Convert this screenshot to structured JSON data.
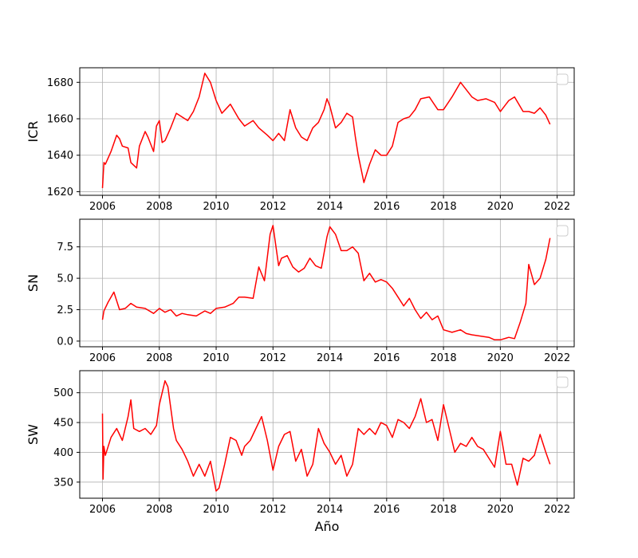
{
  "chart_data": {
    "type": "line",
    "xlabel": "Año",
    "line_color": "#ff0000",
    "grid": true,
    "legend": "top-right (empty)",
    "xlim": [
      2005.2,
      2022.6
    ],
    "x_ticks": [
      2006,
      2008,
      2010,
      2012,
      2014,
      2016,
      2018,
      2020,
      2022
    ],
    "panels": [
      {
        "ylabel": "ICR",
        "ylim": [
          1618,
          1688
        ],
        "y_ticks": [
          1620,
          1640,
          1660,
          1680
        ],
        "y_tick_labels": [
          "1620",
          "1640",
          "1660",
          "1680"
        ],
        "series": {
          "x": [
            2006.0,
            2006.05,
            2006.1,
            2006.3,
            2006.5,
            2006.6,
            2006.7,
            2006.9,
            2007.0,
            2007.2,
            2007.3,
            2007.5,
            2007.6,
            2007.8,
            2007.9,
            2008.0,
            2008.1,
            2008.2,
            2008.4,
            2008.6,
            2008.8,
            2009.0,
            2009.2,
            2009.4,
            2009.6,
            2009.8,
            2010.0,
            2010.2,
            2010.5,
            2010.8,
            2011.0,
            2011.3,
            2011.5,
            2011.8,
            2012.0,
            2012.2,
            2012.4,
            2012.6,
            2012.8,
            2013.0,
            2013.2,
            2013.4,
            2013.6,
            2013.8,
            2013.9,
            2014.0,
            2014.2,
            2014.4,
            2014.6,
            2014.8,
            2014.9,
            2015.0,
            2015.2,
            2015.4,
            2015.6,
            2015.8,
            2016.0,
            2016.2,
            2016.4,
            2016.6,
            2016.8,
            2017.0,
            2017.2,
            2017.5,
            2017.8,
            2018.0,
            2018.3,
            2018.6,
            2018.8,
            2019.0,
            2019.2,
            2019.5,
            2019.8,
            2020.0,
            2020.3,
            2020.5,
            2020.8,
            2021.0,
            2021.2,
            2021.4,
            2021.6,
            2021.75
          ],
          "y": [
            1622,
            1636,
            1635,
            1642,
            1651,
            1649,
            1645,
            1644,
            1636,
            1633,
            1645,
            1653,
            1650,
            1642,
            1656,
            1659,
            1647,
            1648,
            1655,
            1663,
            1661,
            1659,
            1664,
            1672,
            1685,
            1680,
            1670,
            1663,
            1668,
            1660,
            1656,
            1659,
            1655,
            1651,
            1648,
            1652,
            1648,
            1665,
            1655,
            1650,
            1648,
            1655,
            1658,
            1665,
            1671,
            1667,
            1655,
            1658,
            1663,
            1661,
            1650,
            1640,
            1625,
            1635,
            1643,
            1640,
            1640,
            1645,
            1658,
            1660,
            1661,
            1665,
            1671,
            1672,
            1665,
            1665,
            1672,
            1680,
            1676,
            1672,
            1670,
            1671,
            1669,
            1664,
            1670,
            1672,
            1664,
            1664,
            1663,
            1666,
            1662,
            1657
          ]
        }
      },
      {
        "ylabel": "SN",
        "ylim": [
          -0.45,
          9.7
        ],
        "y_ticks": [
          0,
          2.5,
          5.0,
          7.5
        ],
        "y_tick_labels": [
          "0.0",
          "2.5",
          "5.0",
          "7.5"
        ],
        "series": {
          "x": [
            2006.0,
            2006.05,
            2006.2,
            2006.4,
            2006.6,
            2006.8,
            2007.0,
            2007.2,
            2007.5,
            2007.8,
            2008.0,
            2008.2,
            2008.4,
            2008.6,
            2008.8,
            2009.0,
            2009.3,
            2009.6,
            2009.8,
            2010.0,
            2010.3,
            2010.6,
            2010.8,
            2011.0,
            2011.3,
            2011.5,
            2011.7,
            2011.9,
            2012.0,
            2012.2,
            2012.3,
            2012.5,
            2012.7,
            2012.9,
            2013.1,
            2013.3,
            2013.5,
            2013.7,
            2013.9,
            2014.0,
            2014.2,
            2014.4,
            2014.6,
            2014.8,
            2015.0,
            2015.2,
            2015.4,
            2015.6,
            2015.8,
            2016.0,
            2016.2,
            2016.4,
            2016.6,
            2016.8,
            2017.0,
            2017.2,
            2017.4,
            2017.6,
            2017.8,
            2018.0,
            2018.3,
            2018.6,
            2018.8,
            2019.0,
            2019.3,
            2019.6,
            2019.8,
            2020.0,
            2020.3,
            2020.5,
            2020.7,
            2020.9,
            2021.0,
            2021.2,
            2021.4,
            2021.6,
            2021.75
          ],
          "y": [
            1.7,
            2.4,
            3.1,
            3.9,
            2.5,
            2.6,
            3.0,
            2.7,
            2.6,
            2.2,
            2.6,
            2.3,
            2.5,
            2.0,
            2.2,
            2.1,
            2.0,
            2.4,
            2.2,
            2.6,
            2.7,
            3.0,
            3.5,
            3.5,
            3.4,
            5.9,
            4.8,
            8.5,
            9.2,
            6.0,
            6.6,
            6.8,
            5.9,
            5.5,
            5.8,
            6.6,
            6.0,
            5.8,
            8.3,
            9.1,
            8.5,
            7.2,
            7.2,
            7.5,
            7.0,
            4.8,
            5.4,
            4.7,
            4.9,
            4.7,
            4.2,
            3.5,
            2.8,
            3.4,
            2.5,
            1.8,
            2.3,
            1.7,
            2.0,
            0.9,
            0.7,
            0.9,
            0.6,
            0.5,
            0.4,
            0.3,
            0.1,
            0.1,
            0.3,
            0.2,
            1.5,
            3.0,
            6.1,
            4.5,
            5.0,
            6.5,
            8.2
          ]
        }
      },
      {
        "ylabel": "SW",
        "ylim": [
          323,
          537
        ],
        "y_ticks": [
          350,
          400,
          450,
          500
        ],
        "y_tick_labels": [
          "350",
          "400",
          "450",
          "500"
        ],
        "series": {
          "x": [
            2006.0,
            2006.02,
            2006.05,
            2006.1,
            2006.3,
            2006.5,
            2006.7,
            2006.9,
            2007.0,
            2007.1,
            2007.3,
            2007.5,
            2007.7,
            2007.9,
            2008.0,
            2008.2,
            2008.3,
            2008.5,
            2008.6,
            2008.8,
            2009.0,
            2009.2,
            2009.4,
            2009.6,
            2009.8,
            2010.0,
            2010.1,
            2010.3,
            2010.5,
            2010.7,
            2010.9,
            2011.0,
            2011.2,
            2011.4,
            2011.6,
            2011.8,
            2012.0,
            2012.2,
            2012.4,
            2012.6,
            2012.8,
            2013.0,
            2013.2,
            2013.4,
            2013.6,
            2013.8,
            2014.0,
            2014.2,
            2014.4,
            2014.6,
            2014.8,
            2015.0,
            2015.2,
            2015.4,
            2015.6,
            2015.8,
            2016.0,
            2016.2,
            2016.4,
            2016.6,
            2016.8,
            2017.0,
            2017.2,
            2017.4,
            2017.6,
            2017.8,
            2018.0,
            2018.2,
            2018.4,
            2018.6,
            2018.8,
            2019.0,
            2019.2,
            2019.4,
            2019.6,
            2019.8,
            2020.0,
            2020.2,
            2020.4,
            2020.6,
            2020.8,
            2021.0,
            2021.2,
            2021.4,
            2021.6,
            2021.75
          ],
          "y": [
            465,
            355,
            410,
            395,
            425,
            440,
            420,
            460,
            488,
            440,
            435,
            440,
            430,
            445,
            480,
            520,
            510,
            440,
            420,
            405,
            385,
            360,
            380,
            360,
            385,
            335,
            340,
            380,
            425,
            420,
            395,
            410,
            420,
            440,
            460,
            420,
            370,
            410,
            430,
            435,
            385,
            405,
            360,
            380,
            440,
            415,
            400,
            380,
            395,
            360,
            380,
            440,
            430,
            440,
            430,
            450,
            445,
            425,
            455,
            450,
            440,
            460,
            490,
            450,
            455,
            420,
            480,
            440,
            400,
            415,
            410,
            425,
            410,
            405,
            390,
            375,
            435,
            380,
            380,
            345,
            390,
            385,
            395,
            430,
            400,
            380
          ]
        }
      }
    ]
  }
}
